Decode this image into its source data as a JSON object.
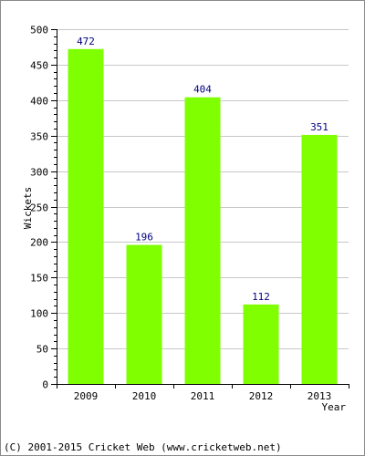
{
  "chart_data": {
    "type": "bar",
    "title": "",
    "categories": [
      "2009",
      "2010",
      "2011",
      "2012",
      "2013"
    ],
    "values": [
      472,
      196,
      404,
      112,
      351
    ],
    "xlabel": "Year",
    "ylabel": "Wickets",
    "ylim": [
      0,
      500
    ],
    "yticks": [
      0,
      50,
      100,
      150,
      200,
      250,
      300,
      350,
      400,
      450,
      500
    ],
    "y_minor_step": 10,
    "grid": true,
    "legend": "none",
    "bar_color": "#7fff00",
    "grid_color": "#c8c8c8",
    "value_label_color": "#000080"
  },
  "footer": {
    "copyright": "(C) 2001-2015 Cricket Web (www.cricketweb.net)"
  }
}
